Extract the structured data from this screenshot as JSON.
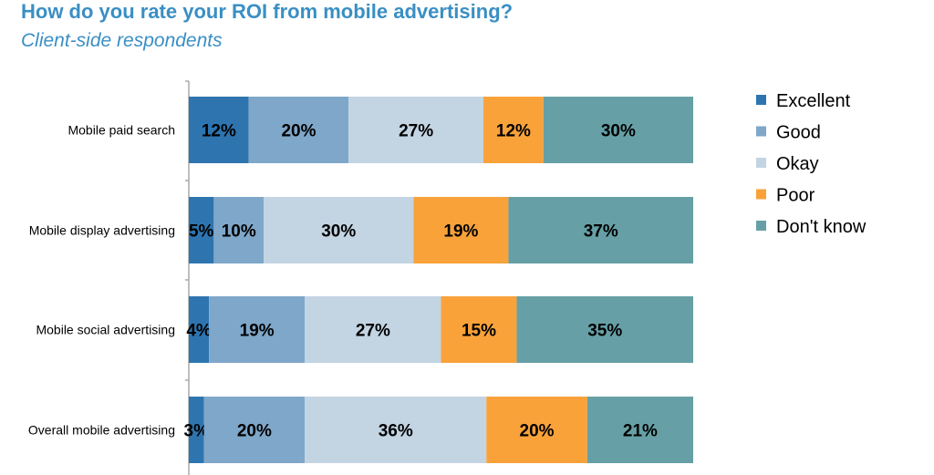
{
  "chart_data": {
    "type": "bar",
    "orientation": "horizontal",
    "stacked": true,
    "title": "How do you rate your ROI from mobile advertising?",
    "subtitle": "Client-side respondents",
    "categories": [
      "Mobile paid search",
      "Mobile display advertising",
      "Mobile social advertising",
      "Overall mobile advertising"
    ],
    "series": [
      {
        "name": "Excellent",
        "color": "#2e75b0",
        "values": [
          12,
          5,
          4,
          3
        ]
      },
      {
        "name": "Good",
        "color": "#7fa7c9",
        "values": [
          20,
          10,
          19,
          20
        ]
      },
      {
        "name": "Okay",
        "color": "#c3d4e3",
        "values": [
          27,
          30,
          27,
          36
        ]
      },
      {
        "name": "Poor",
        "color": "#f9a23a",
        "values": [
          12,
          19,
          15,
          20
        ]
      },
      {
        "name": "Don't know",
        "color": "#66a0a6",
        "values": [
          30,
          37,
          35,
          21
        ]
      }
    ],
    "value_suffix": "%",
    "legend_position": "right",
    "grid": false
  }
}
